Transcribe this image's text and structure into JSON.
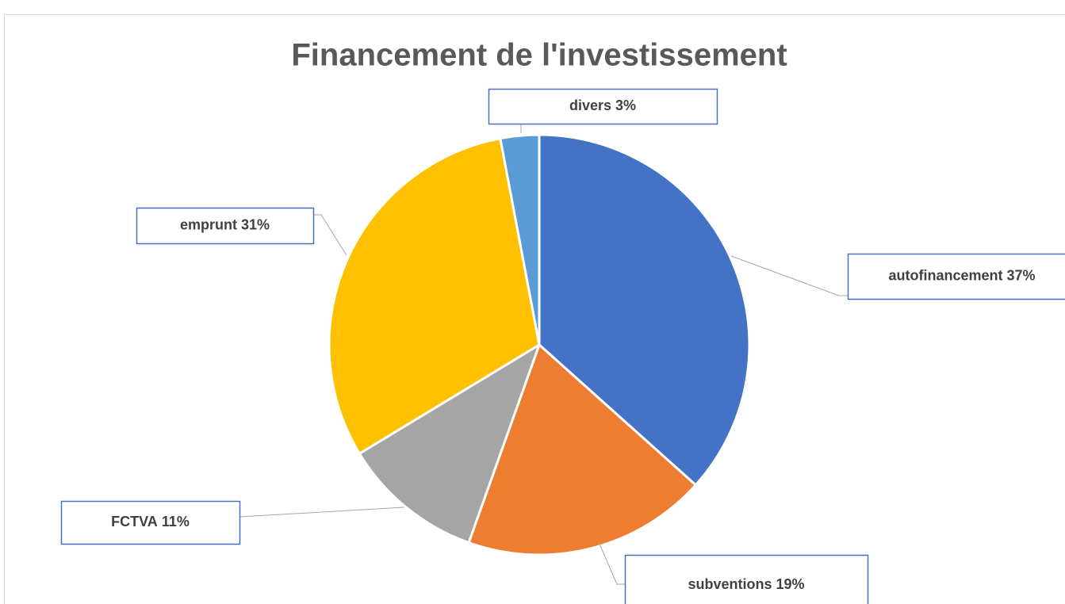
{
  "chart_data": {
    "type": "pie",
    "title": "Financement de l'investissement",
    "categories": [
      "autofinancement",
      "subventions",
      "FCTVA",
      "emprunt",
      "divers"
    ],
    "values": [
      37,
      19,
      11,
      31,
      3
    ],
    "value_labels": [
      "37%",
      "19%",
      "11%",
      "31%",
      "3%"
    ],
    "colors": [
      "#4472c4",
      "#ed7d31",
      "#a5a5a5",
      "#ffc000",
      "#5b9bd5"
    ]
  }
}
